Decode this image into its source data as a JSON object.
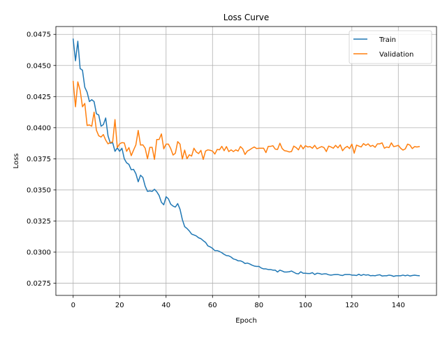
{
  "chart_data": {
    "type": "line",
    "title": "Loss Curve",
    "xlabel": "Epoch",
    "ylabel": "Loss",
    "xlim": [
      -7.45,
      156.45
    ],
    "ylim": [
      0.02652,
      0.04813
    ],
    "xticks": [
      0,
      20,
      40,
      60,
      80,
      100,
      120,
      140
    ],
    "xtick_labels": [
      "0",
      "20",
      "40",
      "60",
      "80",
      "100",
      "120",
      "140"
    ],
    "yticks": [
      0.0275,
      0.03,
      0.0325,
      0.035,
      0.0375,
      0.04,
      0.0425,
      0.045,
      0.0475
    ],
    "ytick_labels": [
      "0.0275",
      "0.0300",
      "0.0325",
      "0.0350",
      "0.0375",
      "0.0400",
      "0.0425",
      "0.0450",
      "0.0475"
    ],
    "grid": true,
    "legend_position": "upper right",
    "x": [
      0,
      1,
      2,
      3,
      4,
      5,
      6,
      7,
      8,
      9,
      10,
      11,
      12,
      13,
      14,
      15,
      16,
      17,
      18,
      19,
      20,
      21,
      22,
      23,
      24,
      25,
      26,
      27,
      28,
      29,
      30,
      31,
      32,
      33,
      34,
      35,
      36,
      37,
      38,
      39,
      40,
      41,
      42,
      43,
      44,
      45,
      46,
      47,
      48,
      49,
      50,
      51,
      52,
      53,
      54,
      55,
      56,
      57,
      58,
      59,
      60,
      61,
      62,
      63,
      64,
      65,
      66,
      67,
      68,
      69,
      70,
      71,
      72,
      73,
      74,
      75,
      76,
      77,
      78,
      79,
      80,
      81,
      82,
      83,
      84,
      85,
      86,
      87,
      88,
      89,
      90,
      91,
      92,
      93,
      94,
      95,
      96,
      97,
      98,
      99,
      100,
      101,
      102,
      103,
      104,
      105,
      106,
      107,
      108,
      109,
      110,
      111,
      112,
      113,
      114,
      115,
      116,
      117,
      118,
      119,
      120,
      121,
      122,
      123,
      124,
      125,
      126,
      127,
      128,
      129,
      130,
      131,
      132,
      133,
      134,
      135,
      136,
      137,
      138,
      139,
      140,
      141,
      142,
      143,
      144,
      145,
      146,
      147,
      148,
      149
    ],
    "series": [
      {
        "name": "Train",
        "color": "#1f77b4",
        "values": [
          0.04712,
          0.04538,
          0.04695,
          0.04475,
          0.04462,
          0.04325,
          0.04285,
          0.0421,
          0.04225,
          0.0421,
          0.04112,
          0.04102,
          0.04012,
          0.04025,
          0.04078,
          0.03935,
          0.03875,
          0.0388,
          0.0381,
          0.03838,
          0.0381,
          0.03835,
          0.0375,
          0.03718,
          0.03705,
          0.03662,
          0.03665,
          0.0363,
          0.03565,
          0.03618,
          0.036,
          0.0353,
          0.03488,
          0.03492,
          0.03488,
          0.03505,
          0.03485,
          0.03455,
          0.034,
          0.0338,
          0.03445,
          0.03428,
          0.03385,
          0.0337,
          0.03362,
          0.0339,
          0.03345,
          0.03262,
          0.03205,
          0.0319,
          0.0317,
          0.03145,
          0.03138,
          0.0313,
          0.03115,
          0.03108,
          0.03092,
          0.03078,
          0.0305,
          0.03042,
          0.0303,
          0.03012,
          0.03012,
          0.03005,
          0.02995,
          0.02982,
          0.02972,
          0.0297,
          0.0296,
          0.02945,
          0.0294,
          0.0293,
          0.0293,
          0.02922,
          0.02908,
          0.02912,
          0.02905,
          0.02895,
          0.02888,
          0.02885,
          0.02885,
          0.02872,
          0.02865,
          0.02865,
          0.0286,
          0.0286,
          0.02855,
          0.02855,
          0.0284,
          0.02855,
          0.02848,
          0.0284,
          0.0284,
          0.02842,
          0.02848,
          0.02838,
          0.02828,
          0.02825,
          0.02842,
          0.0283,
          0.0283,
          0.02828,
          0.02828,
          0.02835,
          0.0282,
          0.0283,
          0.02828,
          0.02822,
          0.02825,
          0.02825,
          0.02818,
          0.02815,
          0.02818,
          0.0282,
          0.0282,
          0.02815,
          0.02812,
          0.0282,
          0.0282,
          0.0282,
          0.02815,
          0.02815,
          0.02812,
          0.02822,
          0.02812,
          0.0282,
          0.02815,
          0.02818,
          0.0281,
          0.02812,
          0.0281,
          0.02815,
          0.02818,
          0.02808,
          0.0281,
          0.0281,
          0.02815,
          0.02812,
          0.02805,
          0.0281,
          0.0281,
          0.0281,
          0.02815,
          0.0281,
          0.02815,
          0.02808,
          0.02812,
          0.02815,
          0.02812,
          0.0281
        ]
      },
      {
        "name": "Validation",
        "color": "#ff7f0e",
        "values": [
          0.04372,
          0.04168,
          0.04368,
          0.043,
          0.04168,
          0.04195,
          0.04018,
          0.04022,
          0.04012,
          0.04125,
          0.0398,
          0.03935,
          0.03925,
          0.03945,
          0.039,
          0.0387,
          0.03882,
          0.03885,
          0.04065,
          0.0384,
          0.0387,
          0.0388,
          0.03878,
          0.0381,
          0.0384,
          0.03775,
          0.0382,
          0.03862,
          0.03978,
          0.0386,
          0.03862,
          0.03835,
          0.0375,
          0.03842,
          0.03842,
          0.03745,
          0.03905,
          0.03905,
          0.0395,
          0.0383,
          0.03868,
          0.03868,
          0.03832,
          0.0378,
          0.03795,
          0.03888,
          0.03868,
          0.03748,
          0.0382,
          0.0375,
          0.03782,
          0.03772,
          0.03835,
          0.03805,
          0.03792,
          0.03818,
          0.03745,
          0.03812,
          0.03822,
          0.03818,
          0.03812,
          0.03788,
          0.03825,
          0.03822,
          0.0385,
          0.03815,
          0.03848,
          0.03808,
          0.03822,
          0.03808,
          0.03822,
          0.03812,
          0.03848,
          0.0383,
          0.03785,
          0.03812,
          0.03822,
          0.03835,
          0.03845,
          0.03832,
          0.03835,
          0.03835,
          0.03835,
          0.038,
          0.0385,
          0.0385,
          0.03855,
          0.03828,
          0.03825,
          0.03875,
          0.03832,
          0.03815,
          0.03812,
          0.03805,
          0.03808,
          0.03852,
          0.0384,
          0.03822,
          0.0386,
          0.0383,
          0.03855,
          0.03845,
          0.03848,
          0.03835,
          0.03858,
          0.0383,
          0.0384,
          0.03848,
          0.0384,
          0.03808,
          0.03852,
          0.03845,
          0.03835,
          0.03858,
          0.03838,
          0.03862,
          0.03815,
          0.03838,
          0.0385,
          0.03832,
          0.03868,
          0.03795,
          0.0386,
          0.03852,
          0.03845,
          0.03872,
          0.03858,
          0.0387,
          0.0385,
          0.03858,
          0.03842,
          0.0387,
          0.0387,
          0.03878,
          0.03835,
          0.03845,
          0.0384,
          0.03878,
          0.03848,
          0.03852,
          0.03858,
          0.03835,
          0.0382,
          0.0383,
          0.03868,
          0.0386,
          0.03832,
          0.03848,
          0.03845,
          0.03848
        ]
      }
    ]
  }
}
